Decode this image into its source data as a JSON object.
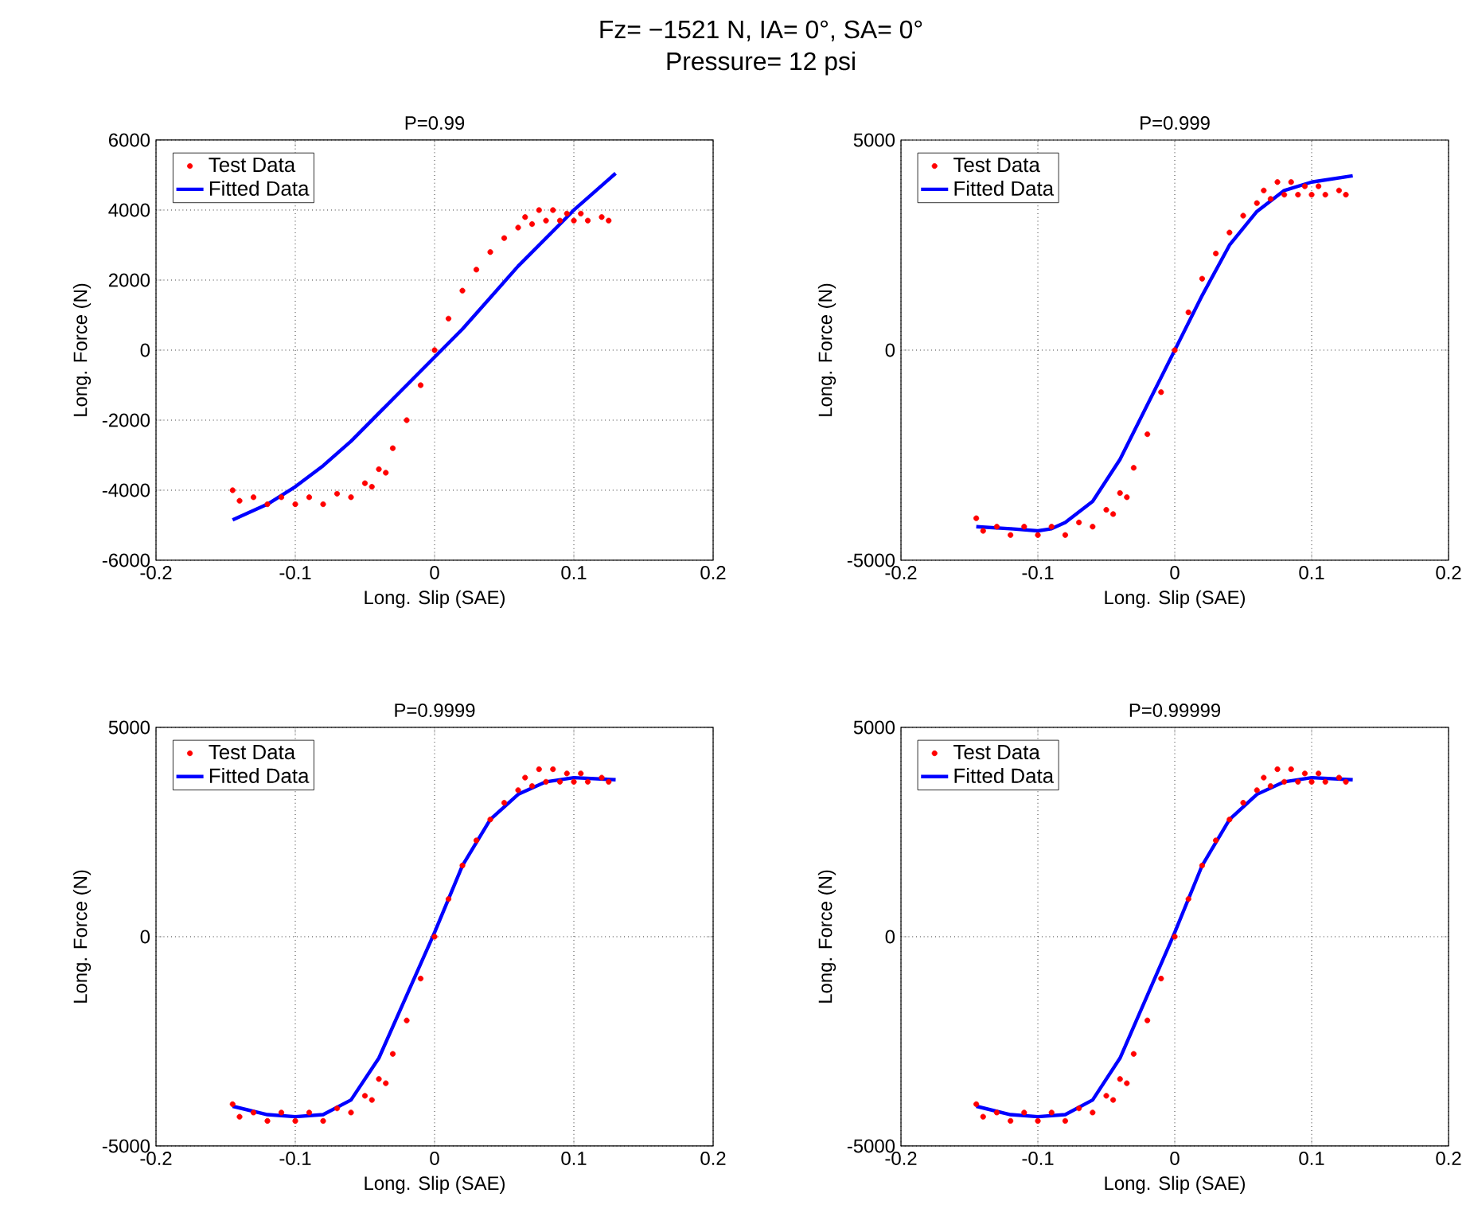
{
  "chart_data": [
    {
      "type": "scatter",
      "title": "P=0.99",
      "xlabel": "Long. Slip (SAE)",
      "ylabel": "Long. Force (N)",
      "annotations": [
        "Fz= −1521 N, IA= 0°, SA= 0°",
        "Pressure= 12 psi"
      ],
      "xlim": [
        -0.2,
        0.2
      ],
      "ylim": [
        -6000,
        6000
      ],
      "xticks": [
        -0.2,
        -0.1,
        0,
        0.1,
        0.2
      ],
      "yticks": [
        -6000,
        -4000,
        -2000,
        0,
        2000,
        4000,
        6000
      ],
      "grid": true,
      "legend": "top left",
      "series": [
        {
          "name": "Test Data",
          "marker": "circle",
          "color": "#ff0000",
          "x": [
            -0.145,
            -0.14,
            -0.13,
            -0.12,
            -0.11,
            -0.1,
            -0.09,
            -0.08,
            -0.07,
            -0.06,
            -0.05,
            -0.045,
            -0.04,
            -0.035,
            -0.03,
            -0.02,
            -0.01,
            0,
            0.01,
            0.02,
            0.03,
            0.04,
            0.05,
            0.06,
            0.065,
            0.07,
            0.075,
            0.08,
            0.085,
            0.09,
            0.095,
            0.1,
            0.105,
            0.11,
            0.12,
            0.125
          ],
          "values": [
            -4000,
            -4300,
            -4200,
            -4400,
            -4200,
            -4400,
            -4200,
            -4400,
            -4100,
            -4200,
            -3800,
            -3900,
            -3400,
            -3500,
            -2800,
            -2000,
            -1000,
            0,
            900,
            1700,
            2300,
            2800,
            3200,
            3500,
            3800,
            3600,
            4000,
            3700,
            4000,
            3700,
            3900,
            3700,
            3900,
            3700,
            3800,
            3700
          ]
        },
        {
          "name": "Fitted Data",
          "type": "line",
          "marker": "none",
          "color": "#0000ff",
          "x": [
            -0.145,
            -0.12,
            -0.1,
            -0.08,
            -0.06,
            -0.04,
            -0.02,
            0,
            0.02,
            0.04,
            0.06,
            0.08,
            0.1,
            0.13
          ],
          "values": [
            -4850,
            -4400,
            -3900,
            -3300,
            -2600,
            -1800,
            -1000,
            -200,
            600,
            1500,
            2400,
            3200,
            4000,
            5050
          ]
        }
      ]
    },
    {
      "type": "scatter",
      "title": "P=0.999",
      "xlabel": "Long. Slip (SAE)",
      "ylabel": "Long. Force (N)",
      "xlim": [
        -0.2,
        0.2
      ],
      "ylim": [
        -5000,
        5000
      ],
      "xticks": [
        -0.2,
        -0.1,
        0,
        0.1,
        0.2
      ],
      "yticks": [
        -5000,
        0,
        5000
      ],
      "grid": true,
      "legend": "top left",
      "series": [
        {
          "name": "Test Data",
          "marker": "circle",
          "color": "#ff0000",
          "x": [
            -0.145,
            -0.14,
            -0.13,
            -0.12,
            -0.11,
            -0.1,
            -0.09,
            -0.08,
            -0.07,
            -0.06,
            -0.05,
            -0.045,
            -0.04,
            -0.035,
            -0.03,
            -0.02,
            -0.01,
            0,
            0.01,
            0.02,
            0.03,
            0.04,
            0.05,
            0.06,
            0.065,
            0.07,
            0.075,
            0.08,
            0.085,
            0.09,
            0.095,
            0.1,
            0.105,
            0.11,
            0.12,
            0.125
          ],
          "values": [
            -4000,
            -4300,
            -4200,
            -4400,
            -4200,
            -4400,
            -4200,
            -4400,
            -4100,
            -4200,
            -3800,
            -3900,
            -3400,
            -3500,
            -2800,
            -2000,
            -1000,
            0,
            900,
            1700,
            2300,
            2800,
            3200,
            3500,
            3800,
            3600,
            4000,
            3700,
            4000,
            3700,
            3900,
            3700,
            3900,
            3700,
            3800,
            3700
          ]
        },
        {
          "name": "Fitted Data",
          "type": "line",
          "marker": "none",
          "color": "#0000ff",
          "x": [
            -0.145,
            -0.12,
            -0.1,
            -0.09,
            -0.08,
            -0.06,
            -0.04,
            -0.02,
            0,
            0.02,
            0.04,
            0.06,
            0.08,
            0.1,
            0.13
          ],
          "values": [
            -4200,
            -4250,
            -4300,
            -4250,
            -4100,
            -3600,
            -2600,
            -1300,
            0,
            1300,
            2500,
            3300,
            3800,
            4000,
            4150
          ]
        }
      ]
    },
    {
      "type": "scatter",
      "title": "P=0.9999",
      "xlabel": "Long. Slip (SAE)",
      "ylabel": "Long. Force (N)",
      "xlim": [
        -0.2,
        0.2
      ],
      "ylim": [
        -5000,
        5000
      ],
      "xticks": [
        -0.2,
        -0.1,
        0,
        0.1,
        0.2
      ],
      "yticks": [
        -5000,
        0,
        5000
      ],
      "grid": true,
      "legend": "top left",
      "series": [
        {
          "name": "Test Data",
          "marker": "circle",
          "color": "#ff0000",
          "x": [
            -0.145,
            -0.14,
            -0.13,
            -0.12,
            -0.11,
            -0.1,
            -0.09,
            -0.08,
            -0.07,
            -0.06,
            -0.05,
            -0.045,
            -0.04,
            -0.035,
            -0.03,
            -0.02,
            -0.01,
            0,
            0.01,
            0.02,
            0.03,
            0.04,
            0.05,
            0.06,
            0.065,
            0.07,
            0.075,
            0.08,
            0.085,
            0.09,
            0.095,
            0.1,
            0.105,
            0.11,
            0.12,
            0.125
          ],
          "values": [
            -4000,
            -4300,
            -4200,
            -4400,
            -4200,
            -4400,
            -4200,
            -4400,
            -4100,
            -4200,
            -3800,
            -3900,
            -3400,
            -3500,
            -2800,
            -2000,
            -1000,
            0,
            900,
            1700,
            2300,
            2800,
            3200,
            3500,
            3800,
            3600,
            4000,
            3700,
            4000,
            3700,
            3900,
            3700,
            3900,
            3700,
            3800,
            3700
          ]
        },
        {
          "name": "Fitted Data",
          "type": "line",
          "marker": "none",
          "color": "#0000ff",
          "x": [
            -0.145,
            -0.12,
            -0.1,
            -0.08,
            -0.06,
            -0.04,
            -0.02,
            0,
            0.02,
            0.04,
            0.06,
            0.08,
            0.1,
            0.13
          ],
          "values": [
            -4050,
            -4250,
            -4300,
            -4250,
            -3900,
            -2900,
            -1400,
            100,
            1700,
            2800,
            3400,
            3700,
            3800,
            3750
          ]
        }
      ]
    },
    {
      "type": "scatter",
      "title": "P=0.99999",
      "xlabel": "Long. Slip (SAE)",
      "ylabel": "Long. Force (N)",
      "xlim": [
        -0.2,
        0.2
      ],
      "ylim": [
        -5000,
        5000
      ],
      "xticks": [
        -0.2,
        -0.1,
        0,
        0.1,
        0.2
      ],
      "yticks": [
        -5000,
        0,
        5000
      ],
      "grid": true,
      "legend": "top left",
      "series": [
        {
          "name": "Test Data",
          "marker": "circle",
          "color": "#ff0000",
          "x": [
            -0.145,
            -0.14,
            -0.13,
            -0.12,
            -0.11,
            -0.1,
            -0.09,
            -0.08,
            -0.07,
            -0.06,
            -0.05,
            -0.045,
            -0.04,
            -0.035,
            -0.03,
            -0.02,
            -0.01,
            0,
            0.01,
            0.02,
            0.03,
            0.04,
            0.05,
            0.06,
            0.065,
            0.07,
            0.075,
            0.08,
            0.085,
            0.09,
            0.095,
            0.1,
            0.105,
            0.11,
            0.12,
            0.125
          ],
          "values": [
            -4000,
            -4300,
            -4200,
            -4400,
            -4200,
            -4400,
            -4200,
            -4400,
            -4100,
            -4200,
            -3800,
            -3900,
            -3400,
            -3500,
            -2800,
            -2000,
            -1000,
            0,
            900,
            1700,
            2300,
            2800,
            3200,
            3500,
            3800,
            3600,
            4000,
            3700,
            4000,
            3700,
            3900,
            3700,
            3900,
            3700,
            3800,
            3700
          ]
        },
        {
          "name": "Fitted Data",
          "type": "line",
          "marker": "none",
          "color": "#0000ff",
          "x": [
            -0.145,
            -0.12,
            -0.1,
            -0.08,
            -0.06,
            -0.04,
            -0.02,
            0,
            0.02,
            0.04,
            0.06,
            0.08,
            0.1,
            0.13
          ],
          "values": [
            -4050,
            -4250,
            -4300,
            -4250,
            -3900,
            -2900,
            -1400,
            100,
            1700,
            2800,
            3400,
            3700,
            3800,
            3750
          ]
        }
      ]
    }
  ]
}
